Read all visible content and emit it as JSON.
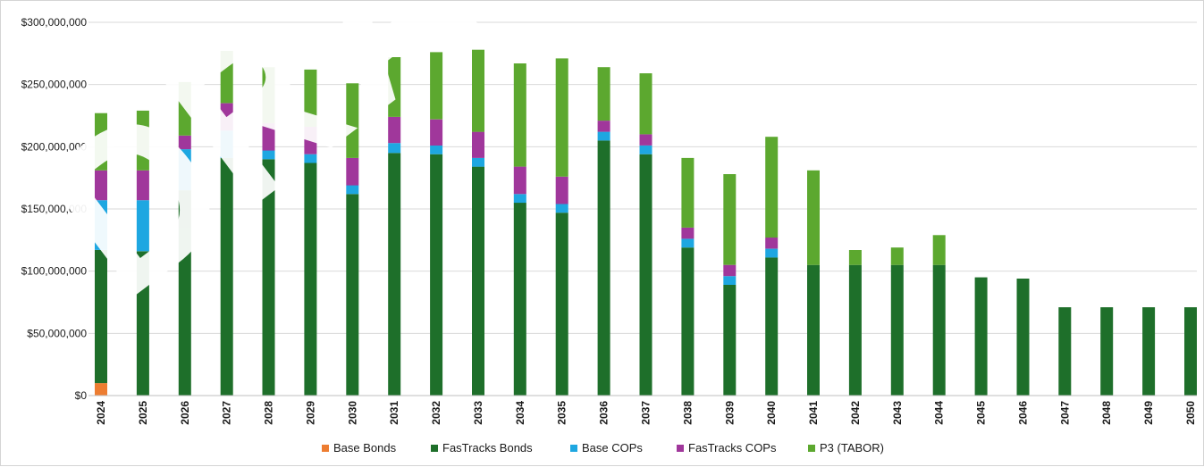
{
  "watermark": "DRAFT",
  "chart_data": {
    "type": "bar",
    "stacked": true,
    "title": "",
    "xlabel": "",
    "ylabel": "",
    "ylim": [
      0,
      300000000
    ],
    "y_ticks": [
      0,
      50000000,
      100000000,
      150000000,
      200000000,
      250000000,
      300000000
    ],
    "y_tick_labels": [
      "$0",
      "$50,000,000",
      "$100,000,000",
      "$150,000,000",
      "$200,000,000",
      "$250,000,000",
      "$300,000,000"
    ],
    "grid": true,
    "legend_position": "bottom",
    "categories": [
      "2024",
      "2025",
      "2026",
      "2027",
      "2028",
      "2029",
      "2030",
      "2031",
      "2032",
      "2033",
      "2034",
      "2035",
      "2036",
      "2037",
      "2038",
      "2039",
      "2040",
      "2041",
      "2042",
      "2043",
      "2044",
      "2045",
      "2046",
      "2047",
      "2048",
      "2049",
      "2050"
    ],
    "series": [
      {
        "name": "Base Bonds",
        "color": "#ed7d31",
        "values": [
          10000000,
          0,
          0,
          0,
          0,
          0,
          0,
          0,
          0,
          0,
          0,
          0,
          0,
          0,
          0,
          0,
          0,
          0,
          0,
          0,
          0,
          0,
          0,
          0,
          0,
          0,
          0
        ]
      },
      {
        "name": "FasTracks Bonds",
        "color": "#1e6f2a",
        "values": [
          107000000,
          116000000,
          165000000,
          191000000,
          190000000,
          187000000,
          162000000,
          195000000,
          194000000,
          184000000,
          155000000,
          147000000,
          205000000,
          194000000,
          119000000,
          89000000,
          111000000,
          105000000,
          105000000,
          105000000,
          105000000,
          95000000,
          94000000,
          71000000,
          71000000,
          71000000,
          71000000
        ]
      },
      {
        "name": "Base COPs",
        "color": "#1ea7e1",
        "values": [
          40000000,
          41000000,
          33000000,
          22000000,
          7000000,
          7000000,
          7000000,
          8000000,
          7000000,
          7000000,
          7000000,
          7000000,
          7000000,
          7000000,
          7000000,
          7000000,
          7000000,
          0,
          0,
          0,
          0,
          0,
          0,
          0,
          0,
          0,
          0
        ]
      },
      {
        "name": "FasTracks COPs",
        "color": "#a0379b",
        "values": [
          24000000,
          24000000,
          11000000,
          22000000,
          22000000,
          22000000,
          22000000,
          21000000,
          21000000,
          21000000,
          22000000,
          22000000,
          9000000,
          9000000,
          9000000,
          9000000,
          9000000,
          0,
          0,
          0,
          0,
          0,
          0,
          0,
          0,
          0,
          0
        ]
      },
      {
        "name": "P3 (TABOR)",
        "color": "#5ca82f",
        "values": [
          46000000,
          48000000,
          43000000,
          42000000,
          45000000,
          46000000,
          60000000,
          48000000,
          54000000,
          66000000,
          83000000,
          95000000,
          43000000,
          49000000,
          56000000,
          73000000,
          81000000,
          76000000,
          12000000,
          14000000,
          24000000,
          0,
          0,
          0,
          0,
          0,
          0
        ]
      }
    ]
  }
}
